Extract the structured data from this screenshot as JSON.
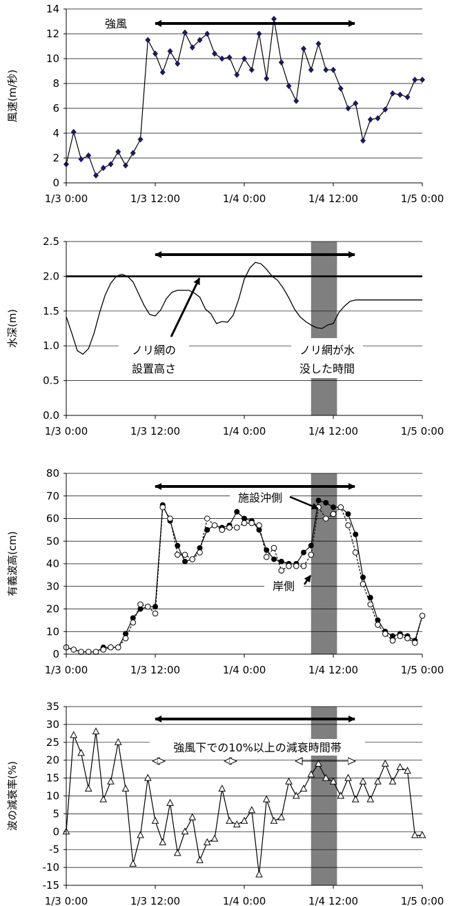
{
  "x_ticks": [
    "1/3 0:00",
    "1/3 12:00",
    "1/4 0:00",
    "1/4 12:00",
    "1/5 0:00"
  ],
  "chart_data": [
    {
      "type": "line",
      "ylabel": "風速(m/秒)",
      "ylim": [
        0,
        14
      ],
      "yticks": [
        "0",
        "2",
        "4",
        "6",
        "8",
        "10",
        "12",
        "14"
      ],
      "grid": true,
      "annotations": {
        "arrow_label": "強風"
      },
      "series": [
        {
          "marker": "diamond",
          "color": "#1a1a5e",
          "x": [
            0,
            2,
            4,
            6,
            8,
            10,
            12,
            14,
            16,
            18,
            20,
            22,
            24,
            26,
            28,
            30,
            32,
            34,
            36,
            38,
            40,
            42,
            44,
            46,
            48,
            50,
            52,
            54,
            56,
            58,
            60,
            62,
            64,
            66,
            68,
            70,
            72,
            74,
            76,
            78,
            80,
            82,
            84,
            86,
            88,
            90,
            92,
            94,
            96
          ],
          "values": [
            1.5,
            4.1,
            1.9,
            2.2,
            0.6,
            1.2,
            1.5,
            2.5,
            1.4,
            2.4,
            3.5,
            11.5,
            10.4,
            8.9,
            10.6,
            9.6,
            12.1,
            10.9,
            11.5,
            12.0,
            10.4,
            10.0,
            10.1,
            8.7,
            10.0,
            9.1,
            12.0,
            8.4,
            13.2,
            9.7,
            7.8,
            6.6,
            10.8,
            9.1,
            11.2,
            9.1,
            9.1,
            7.6,
            6.0,
            6.4,
            3.4,
            5.1,
            5.2,
            5.9,
            7.2,
            7.1,
            6.9,
            8.3,
            8.3
          ]
        }
      ]
    },
    {
      "type": "line",
      "ylabel": "水深(m)",
      "ylim": [
        0,
        2.5
      ],
      "yticks": [
        "0.0",
        "0.5",
        "1.0",
        "1.5",
        "2.0",
        "2.5"
      ],
      "grid": true,
      "reference_line": 2.0,
      "shaded_x": [
        66,
        73
      ],
      "annotations": {
        "left_line1": "ノリ網の",
        "left_line2": "設置高さ",
        "right_line1": "ノリ網が水",
        "right_line2": "没した時間"
      },
      "series": [
        {
          "x": [
            0,
            1.5,
            3,
            4.5,
            6,
            7.5,
            9,
            10.5,
            12,
            13.5,
            15,
            16.5,
            18,
            19.5,
            21,
            22.5,
            24,
            25.5,
            27,
            28.5,
            30,
            31.5,
            33,
            34.5,
            36,
            37.5,
            39,
            40.5,
            42,
            43.5,
            45,
            46.5,
            48,
            49.5,
            51,
            52.5,
            54,
            55.5,
            57,
            58.5,
            60,
            61.5,
            63,
            64.5,
            66,
            67.5,
            69,
            70.5,
            72,
            73.5,
            75,
            76.5,
            78,
            79.5,
            81,
            82.5,
            84,
            85.5,
            87,
            88.5,
            90,
            91.5,
            93,
            94.5,
            96
          ],
          "values": [
            1.42,
            1.18,
            0.93,
            0.88,
            0.96,
            1.18,
            1.48,
            1.73,
            1.9,
            2.0,
            2.03,
            2.0,
            1.92,
            1.75,
            1.58,
            1.45,
            1.43,
            1.52,
            1.68,
            1.77,
            1.8,
            1.8,
            1.8,
            1.76,
            1.7,
            1.53,
            1.46,
            1.32,
            1.35,
            1.34,
            1.44,
            1.67,
            1.96,
            2.12,
            2.2,
            2.18,
            2.1,
            2.0,
            1.94,
            1.83,
            1.69,
            1.53,
            1.42,
            1.35,
            1.3,
            1.26,
            1.25,
            1.3,
            1.32,
            1.48,
            1.57,
            1.64,
            1.66,
            1.66,
            1.66,
            1.66,
            1.66,
            1.66,
            1.66,
            1.66,
            1.66,
            1.66,
            1.66,
            1.66,
            1.66
          ]
        }
      ]
    },
    {
      "type": "line",
      "ylabel": "有義波高(cm)",
      "ylim": [
        0,
        80
      ],
      "yticks": [
        "0",
        "10",
        "20",
        "30",
        "40",
        "50",
        "60",
        "70",
        "80"
      ],
      "grid": true,
      "shaded_x": [
        66,
        73
      ],
      "annotations": {
        "offshore_label": "施設沖側",
        "shore_label": "岸側"
      },
      "series": [
        {
          "name": "施設沖側",
          "marker": "filled-circle",
          "x": [
            0,
            2,
            4,
            6,
            8,
            10,
            12,
            14,
            16,
            18,
            20,
            22,
            24,
            26,
            28,
            30,
            32,
            34,
            36,
            38,
            40,
            42,
            44,
            46,
            48,
            50,
            52,
            54,
            56,
            58,
            60,
            62,
            64,
            66,
            68,
            70,
            72,
            74,
            76,
            78,
            80,
            82,
            84,
            86,
            88,
            90,
            92,
            94,
            96
          ],
          "values": [
            3,
            2,
            1,
            1,
            1,
            3,
            3,
            3,
            9,
            16,
            20,
            21,
            21,
            66,
            59,
            48,
            41,
            42,
            47,
            55,
            57,
            56,
            57,
            63,
            60,
            59,
            55,
            46,
            42,
            41,
            40,
            40,
            45,
            48,
            68,
            67,
            65,
            65,
            62,
            53,
            34,
            25,
            15,
            10,
            8,
            9,
            8,
            6,
            17
          ]
        },
        {
          "name": "岸側",
          "marker": "open-circle",
          "x": [
            0,
            2,
            4,
            6,
            8,
            10,
            12,
            14,
            16,
            18,
            20,
            22,
            24,
            26,
            28,
            30,
            32,
            34,
            36,
            38,
            40,
            42,
            44,
            46,
            48,
            50,
            52,
            54,
            56,
            58,
            60,
            62,
            64,
            66,
            68,
            70,
            72,
            74,
            76,
            78,
            80,
            82,
            84,
            86,
            88,
            90,
            92,
            94,
            96
          ],
          "values": [
            3,
            2,
            1,
            1,
            1,
            2,
            3,
            3,
            7,
            14,
            22,
            21,
            18,
            65,
            60,
            44,
            44,
            42,
            45,
            60,
            57,
            55,
            56,
            56,
            58,
            58,
            57,
            43,
            47,
            37,
            39,
            39,
            39,
            44,
            65,
            60,
            62,
            65,
            57,
            45,
            31,
            22,
            13,
            9,
            6,
            8,
            7,
            5,
            17
          ]
        }
      ]
    },
    {
      "type": "line",
      "ylabel": "波の減衰率(%)",
      "ylim": [
        -15,
        35
      ],
      "yticks": [
        "-15",
        "-10",
        "-5",
        "0",
        "5",
        "10",
        "15",
        "20",
        "25",
        "30",
        "35"
      ],
      "grid": true,
      "shaded_x": [
        66,
        73
      ],
      "annotations": {
        "band_label": "強風下での10%以上の減衰時間帯"
      },
      "series": [
        {
          "marker": "open-triangle",
          "x": [
            0,
            2,
            4,
            6,
            8,
            10,
            12,
            14,
            16,
            18,
            20,
            22,
            24,
            26,
            28,
            30,
            32,
            34,
            36,
            38,
            40,
            42,
            44,
            46,
            48,
            50,
            52,
            54,
            56,
            58,
            60,
            62,
            64,
            66,
            68,
            70,
            72,
            74,
            76,
            78,
            80,
            82,
            84,
            86,
            88,
            90,
            92,
            94,
            96
          ],
          "values": [
            0,
            27,
            22,
            12,
            28,
            9,
            14,
            25,
            12,
            -9,
            -1,
            15,
            3,
            -3,
            8,
            -6,
            0,
            4,
            -8,
            -3,
            -2,
            12,
            3,
            2,
            3,
            6,
            -12,
            9,
            3,
            4,
            14,
            10,
            12,
            16,
            19,
            15,
            14,
            10,
            15,
            9,
            14,
            9,
            14,
            19,
            14,
            18,
            17,
            -1,
            -1
          ]
        }
      ]
    }
  ]
}
